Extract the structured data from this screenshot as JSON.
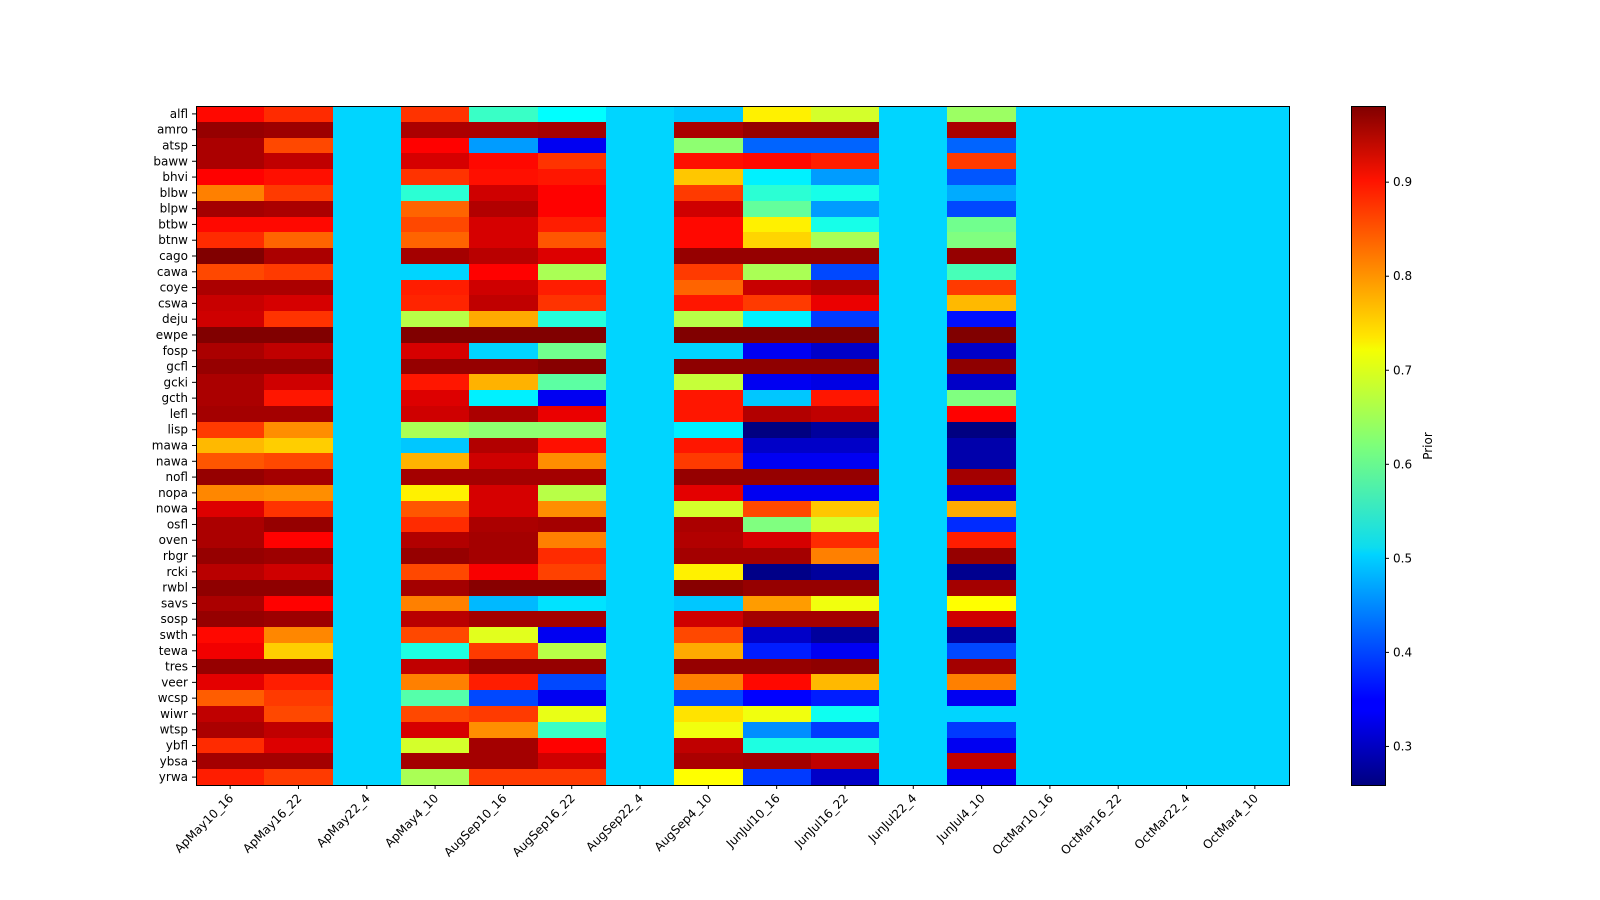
{
  "chart_data": {
    "type": "heatmap",
    "title": "",
    "xlabel": "",
    "ylabel": "",
    "colormap": "jet",
    "colorbar": {
      "label": "Prior",
      "range": [
        0.259,
        0.981
      ],
      "ticks": [
        "0.3",
        "0.4",
        "0.5",
        "0.6",
        "0.7",
        "0.8",
        "0.9"
      ],
      "tick_values": [
        0.3,
        0.4,
        0.5,
        0.6,
        0.7,
        0.8,
        0.9
      ],
      "placement": "right"
    },
    "x_labels": [
      "ApMay10_16",
      "ApMay16_22",
      "ApMay22_4",
      "ApMay4_10",
      "AugSep10_16",
      "AugSep16_22",
      "AugSep22_4",
      "AugSep4_10",
      "JunJul10_16",
      "JunJul16_22",
      "JunJul22_4",
      "JunJul4_10",
      "OctMar10_16",
      "OctMar16_22",
      "OctMar22_4",
      "OctMar4_10"
    ],
    "y_labels": [
      "alfl",
      "amro",
      "atsp",
      "baww",
      "bhvi",
      "blbw",
      "blpw",
      "btbw",
      "btnw",
      "cago",
      "cawa",
      "coye",
      "cswa",
      "deju",
      "ewpe",
      "fosp",
      "gcfl",
      "gcki",
      "gcth",
      "lefl",
      "lisp",
      "mawa",
      "nawa",
      "nofl",
      "nopa",
      "nowa",
      "osfl",
      "oven",
      "rbgr",
      "rcki",
      "rwbl",
      "savs",
      "sosp",
      "swth",
      "tewa",
      "tres",
      "veer",
      "wcsp",
      "wiwr",
      "wtsp",
      "ybfl",
      "ybsa",
      "yrwa"
    ],
    "values": [
      [
        0.885,
        0.86,
        0.5,
        0.855,
        0.57,
        0.53,
        0.5,
        0.49,
        0.72,
        0.68,
        0.5,
        0.64,
        0.5,
        0.5,
        0.5,
        0.5
      ],
      [
        0.965,
        0.96,
        0.5,
        0.95,
        0.95,
        0.955,
        0.5,
        0.95,
        0.965,
        0.965,
        0.5,
        0.95,
        0.5,
        0.5,
        0.5,
        0.5
      ],
      [
        0.95,
        0.84,
        0.5,
        0.89,
        0.46,
        0.34,
        0.5,
        0.63,
        0.42,
        0.42,
        0.5,
        0.42,
        0.5,
        0.5,
        0.5,
        0.5
      ],
      [
        0.95,
        0.935,
        0.5,
        0.92,
        0.885,
        0.855,
        0.5,
        0.88,
        0.885,
        0.87,
        0.5,
        0.85,
        0.5,
        0.5,
        0.5,
        0.5
      ],
      [
        0.89,
        0.88,
        0.5,
        0.855,
        0.88,
        0.875,
        0.5,
        0.75,
        0.52,
        0.46,
        0.5,
        0.41,
        0.5,
        0.5,
        0.5,
        0.5
      ],
      [
        0.8,
        0.85,
        0.5,
        0.56,
        0.925,
        0.89,
        0.5,
        0.85,
        0.56,
        0.545,
        0.5,
        0.47,
        0.5,
        0.5,
        0.5,
        0.5
      ],
      [
        0.955,
        0.95,
        0.5,
        0.82,
        0.945,
        0.89,
        0.5,
        0.925,
        0.6,
        0.46,
        0.5,
        0.4,
        0.5,
        0.5,
        0.5,
        0.5
      ],
      [
        0.885,
        0.885,
        0.5,
        0.84,
        0.92,
        0.87,
        0.5,
        0.885,
        0.72,
        0.545,
        0.5,
        0.61,
        0.5,
        0.5,
        0.5,
        0.5
      ],
      [
        0.86,
        0.82,
        0.5,
        0.82,
        0.92,
        0.83,
        0.5,
        0.885,
        0.74,
        0.65,
        0.5,
        0.62,
        0.5,
        0.5,
        0.5,
        0.5
      ],
      [
        0.98,
        0.95,
        0.5,
        0.955,
        0.94,
        0.915,
        0.5,
        0.965,
        0.965,
        0.965,
        0.5,
        0.965,
        0.5,
        0.5,
        0.5,
        0.5
      ],
      [
        0.84,
        0.85,
        0.5,
        0.5,
        0.89,
        0.65,
        0.5,
        0.85,
        0.65,
        0.4,
        0.5,
        0.58,
        0.5,
        0.5,
        0.5,
        0.5
      ],
      [
        0.95,
        0.95,
        0.5,
        0.87,
        0.925,
        0.87,
        0.5,
        0.82,
        0.93,
        0.945,
        0.5,
        0.85,
        0.5,
        0.5,
        0.5,
        0.5
      ],
      [
        0.93,
        0.92,
        0.5,
        0.865,
        0.935,
        0.855,
        0.5,
        0.875,
        0.85,
        0.905,
        0.5,
        0.76,
        0.5,
        0.5,
        0.5,
        0.5
      ],
      [
        0.925,
        0.855,
        0.5,
        0.66,
        0.77,
        0.555,
        0.5,
        0.66,
        0.52,
        0.39,
        0.5,
        0.36,
        0.5,
        0.5,
        0.5,
        0.5
      ],
      [
        0.98,
        0.98,
        0.5,
        0.98,
        0.98,
        0.98,
        0.5,
        0.98,
        0.98,
        0.98,
        0.5,
        0.98,
        0.5,
        0.5,
        0.5,
        0.5
      ],
      [
        0.95,
        0.935,
        0.5,
        0.92,
        0.5,
        0.61,
        0.5,
        0.5,
        0.34,
        0.31,
        0.5,
        0.31,
        0.5,
        0.5,
        0.5,
        0.5
      ],
      [
        0.965,
        0.965,
        0.5,
        0.965,
        0.965,
        0.975,
        0.5,
        0.97,
        0.97,
        0.97,
        0.5,
        0.97,
        0.5,
        0.5,
        0.5,
        0.5
      ],
      [
        0.95,
        0.925,
        0.5,
        0.875,
        0.765,
        0.595,
        0.5,
        0.67,
        0.34,
        0.33,
        0.5,
        0.31,
        0.5,
        0.5,
        0.5,
        0.5
      ],
      [
        0.95,
        0.875,
        0.5,
        0.915,
        0.52,
        0.34,
        0.5,
        0.875,
        0.49,
        0.875,
        0.5,
        0.62,
        0.5,
        0.5,
        0.5,
        0.5
      ],
      [
        0.955,
        0.955,
        0.5,
        0.925,
        0.95,
        0.905,
        0.5,
        0.875,
        0.945,
        0.935,
        0.5,
        0.89,
        0.5,
        0.5,
        0.5,
        0.5
      ],
      [
        0.85,
        0.79,
        0.5,
        0.65,
        0.63,
        0.63,
        0.5,
        0.52,
        0.26,
        0.28,
        0.5,
        0.26,
        0.5,
        0.5,
        0.5,
        0.5
      ],
      [
        0.76,
        0.745,
        0.5,
        0.49,
        0.945,
        0.88,
        0.5,
        0.875,
        0.31,
        0.31,
        0.5,
        0.29,
        0.5,
        0.5,
        0.5,
        0.5
      ],
      [
        0.83,
        0.84,
        0.5,
        0.765,
        0.925,
        0.79,
        0.5,
        0.85,
        0.34,
        0.34,
        0.5,
        0.29,
        0.5,
        0.5,
        0.5,
        0.5
      ],
      [
        0.965,
        0.955,
        0.5,
        0.955,
        0.955,
        0.955,
        0.5,
        0.965,
        0.965,
        0.965,
        0.5,
        0.955,
        0.5,
        0.5,
        0.5,
        0.5
      ],
      [
        0.795,
        0.79,
        0.5,
        0.72,
        0.92,
        0.66,
        0.5,
        0.91,
        0.34,
        0.34,
        0.5,
        0.32,
        0.5,
        0.5,
        0.5,
        0.5
      ],
      [
        0.915,
        0.855,
        0.5,
        0.83,
        0.92,
        0.79,
        0.5,
        0.68,
        0.84,
        0.75,
        0.5,
        0.77,
        0.5,
        0.5,
        0.5,
        0.5
      ],
      [
        0.95,
        0.965,
        0.5,
        0.86,
        0.95,
        0.955,
        0.5,
        0.95,
        0.62,
        0.68,
        0.5,
        0.38,
        0.5,
        0.5,
        0.5,
        0.5
      ],
      [
        0.95,
        0.89,
        0.5,
        0.945,
        0.955,
        0.8,
        0.5,
        0.945,
        0.92,
        0.86,
        0.5,
        0.87,
        0.5,
        0.5,
        0.5,
        0.5
      ],
      [
        0.965,
        0.96,
        0.5,
        0.965,
        0.955,
        0.86,
        0.5,
        0.955,
        0.955,
        0.8,
        0.5,
        0.965,
        0.5,
        0.5,
        0.5,
        0.5
      ],
      [
        0.94,
        0.925,
        0.5,
        0.84,
        0.895,
        0.845,
        0.5,
        0.72,
        0.265,
        0.28,
        0.5,
        0.27,
        0.5,
        0.5,
        0.5,
        0.5
      ],
      [
        0.97,
        0.97,
        0.5,
        0.955,
        0.975,
        0.975,
        0.5,
        0.975,
        0.965,
        0.965,
        0.5,
        0.955,
        0.5,
        0.5,
        0.5,
        0.5
      ],
      [
        0.95,
        0.89,
        0.5,
        0.8,
        0.48,
        0.51,
        0.5,
        0.49,
        0.78,
        0.7,
        0.5,
        0.71,
        0.5,
        0.5,
        0.5,
        0.5
      ],
      [
        0.965,
        0.96,
        0.5,
        0.94,
        0.955,
        0.955,
        0.5,
        0.925,
        0.955,
        0.955,
        0.5,
        0.925,
        0.5,
        0.5,
        0.5,
        0.5
      ],
      [
        0.885,
        0.795,
        0.5,
        0.84,
        0.69,
        0.34,
        0.5,
        0.84,
        0.31,
        0.28,
        0.5,
        0.28,
        0.5,
        0.5,
        0.5,
        0.5
      ],
      [
        0.9,
        0.745,
        0.5,
        0.55,
        0.85,
        0.66,
        0.5,
        0.77,
        0.37,
        0.34,
        0.5,
        0.4,
        0.5,
        0.5,
        0.5,
        0.5
      ],
      [
        0.965,
        0.965,
        0.5,
        0.935,
        0.965,
        0.965,
        0.5,
        0.965,
        0.965,
        0.97,
        0.5,
        0.955,
        0.5,
        0.5,
        0.5,
        0.5
      ],
      [
        0.91,
        0.87,
        0.5,
        0.8,
        0.87,
        0.4,
        0.5,
        0.8,
        0.885,
        0.76,
        0.5,
        0.8,
        0.5,
        0.5,
        0.5,
        0.5
      ],
      [
        0.825,
        0.85,
        0.5,
        0.59,
        0.4,
        0.34,
        0.5,
        0.4,
        0.35,
        0.37,
        0.5,
        0.34,
        0.5,
        0.5,
        0.5,
        0.5
      ],
      [
        0.935,
        0.84,
        0.5,
        0.84,
        0.85,
        0.695,
        0.5,
        0.73,
        0.7,
        0.54,
        0.5,
        0.5,
        0.5,
        0.5,
        0.5,
        0.5
      ],
      [
        0.95,
        0.935,
        0.5,
        0.92,
        0.79,
        0.57,
        0.5,
        0.7,
        0.45,
        0.39,
        0.5,
        0.39,
        0.5,
        0.5,
        0.5,
        0.5
      ],
      [
        0.86,
        0.915,
        0.5,
        0.68,
        0.955,
        0.89,
        0.5,
        0.935,
        0.55,
        0.55,
        0.5,
        0.34,
        0.5,
        0.5,
        0.5,
        0.5
      ],
      [
        0.955,
        0.955,
        0.5,
        0.955,
        0.955,
        0.925,
        0.5,
        0.95,
        0.955,
        0.935,
        0.5,
        0.935,
        0.5,
        0.5,
        0.5,
        0.5
      ],
      [
        0.87,
        0.85,
        0.5,
        0.65,
        0.85,
        0.85,
        0.5,
        0.71,
        0.39,
        0.31,
        0.5,
        0.34,
        0.5,
        0.5,
        0.5,
        0.5
      ]
    ]
  }
}
